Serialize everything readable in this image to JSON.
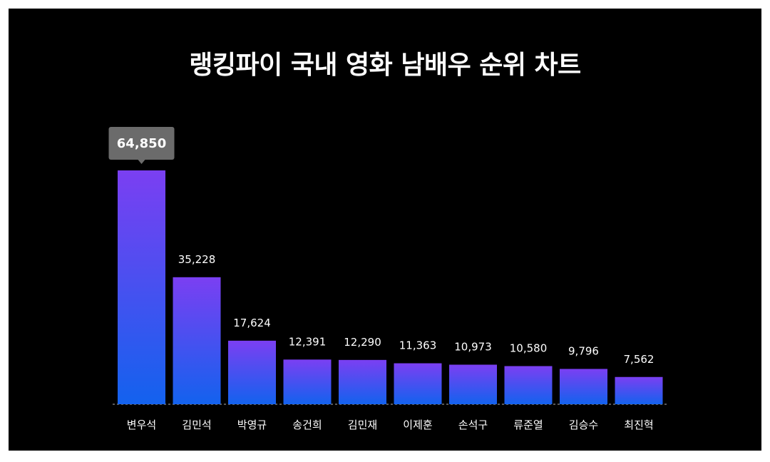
{
  "colors": {
    "background": "#000000",
    "bar_top": "#7b3ff2",
    "bar_bottom": "#1362ee",
    "text": "#ffffff",
    "tooltip_bg": "#6b6b6b"
  },
  "chart_data": {
    "type": "bar",
    "title": "랭킹파이 국내 영화 남배우 순위 차트",
    "categories": [
      "변우석",
      "김민석",
      "박영규",
      "송건희",
      "김민재",
      "이제훈",
      "손석구",
      "류준열",
      "김승수",
      "최진혁"
    ],
    "values": [
      64850,
      35228,
      17624,
      12391,
      12290,
      11363,
      10973,
      10580,
      9796,
      7562
    ],
    "value_labels": [
      "64,850",
      "35,228",
      "17,624",
      "12,391",
      "12,290",
      "11,363",
      "10,973",
      "10,580",
      "9,796",
      "7,562"
    ],
    "highlight_index": 0,
    "ylim": [
      0,
      64850
    ],
    "grid": false,
    "legend": "none"
  }
}
